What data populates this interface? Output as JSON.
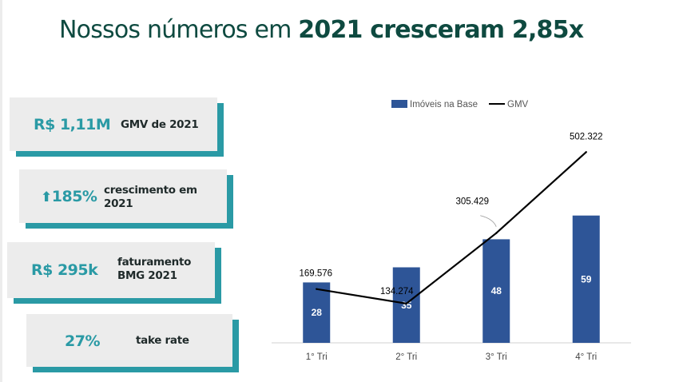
{
  "title": {
    "regular": "Nossos números em ",
    "bold": "2021 cresceram 2,85x"
  },
  "kpis": [
    {
      "value": "R$ 1,11M",
      "label_line1": "GMV de 2021",
      "label_line2": ""
    },
    {
      "icon": "up-arrow-icon",
      "arrow": "⬆",
      "value": "185%",
      "label_line1": "crescimento em",
      "label_line2": "2021"
    },
    {
      "value": "R$ 295k",
      "label_line1": "faturamento",
      "label_line2": "BMG 2021"
    },
    {
      "value": "27%",
      "label_line1": "take rate",
      "label_line2": ""
    }
  ],
  "colors": {
    "title": "#0e4a40",
    "accent": "#2a9aa5",
    "card_bg": "#ececec",
    "bar": "#2e5597",
    "line": "#000000"
  },
  "chart_data": {
    "type": "bar+line",
    "categories": [
      "1° Tri",
      "2° Tri",
      "3° Tri",
      "4° Tri"
    ],
    "series": [
      {
        "name": "Imóveis na Base",
        "type": "bar",
        "values": [
          28,
          35,
          48,
          59
        ],
        "labels": [
          "28",
          "35",
          "48",
          "59"
        ]
      },
      {
        "name": "GMV",
        "type": "line",
        "values": [
          169576,
          134274,
          305429,
          502322
        ],
        "labels": [
          "169.576",
          "134.274",
          "305.429",
          "502.322"
        ]
      }
    ],
    "legend": {
      "position": "top",
      "entries": [
        "Imóveis na Base",
        "GMV"
      ]
    },
    "bar_axis_range": [
      0,
      100
    ],
    "line_axis_range": [
      0,
      600000
    ],
    "grid": false
  }
}
